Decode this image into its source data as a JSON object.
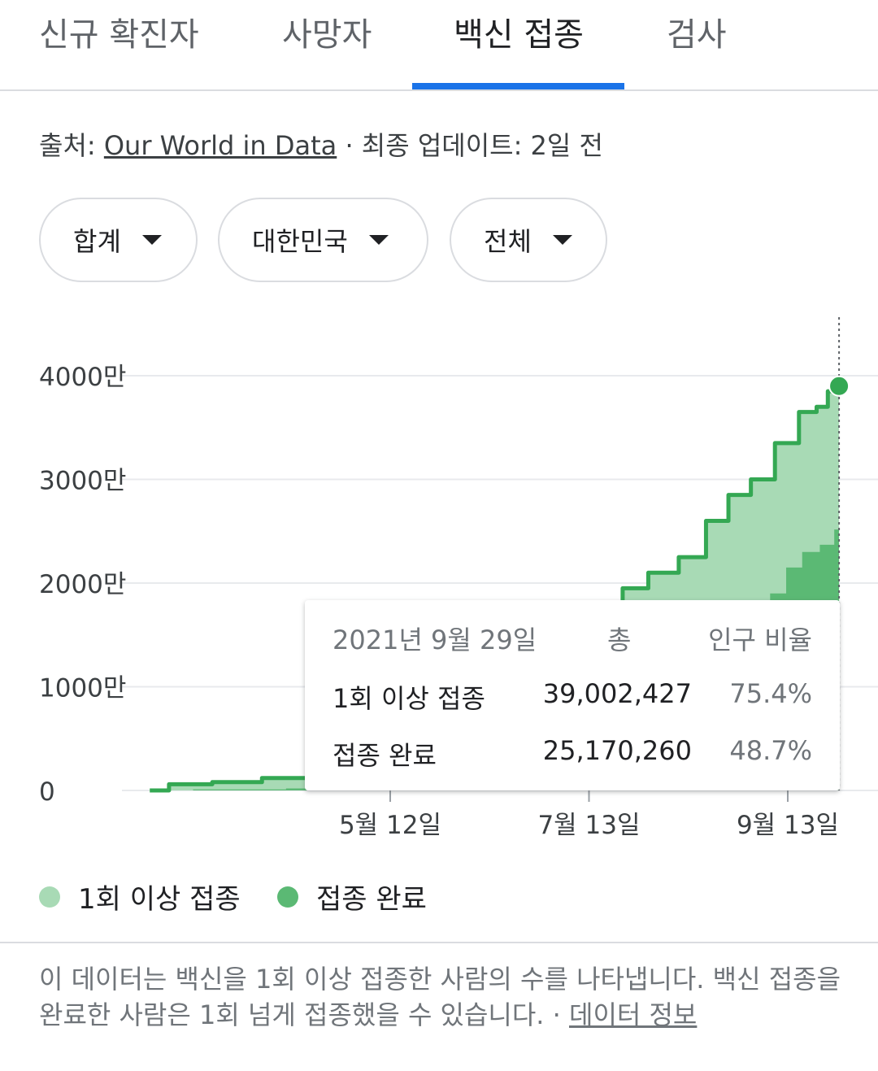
{
  "tabs": [
    {
      "label": "신규 확진자"
    },
    {
      "label": "사망자"
    },
    {
      "label": "백신 접종"
    },
    {
      "label": "검사"
    }
  ],
  "source": {
    "prefix": "출처: ",
    "link": "Our World in Data",
    "suffix": " · 최종 업데이트: 2일 전"
  },
  "filters": [
    {
      "label": "합계"
    },
    {
      "label": "대한민국"
    },
    {
      "label": "전체"
    }
  ],
  "colors": {
    "first_dose": "#a8dab5",
    "completed": "#5bb974",
    "line": "#34a853",
    "accent": "#1a73e8"
  },
  "chart_data": {
    "type": "area",
    "ylim": [
      0,
      40000000
    ],
    "y_ticks": [
      {
        "value": 0,
        "label": "0"
      },
      {
        "value": 10000000,
        "label": "1000만"
      },
      {
        "value": 20000000,
        "label": "2000만"
      },
      {
        "value": 30000000,
        "label": "3000만"
      },
      {
        "value": 40000000,
        "label": "4000만"
      }
    ],
    "x_ticks": [
      {
        "date": "2021-05-12",
        "label": "5월 12일"
      },
      {
        "date": "2021-07-13",
        "label": "7월 13일"
      },
      {
        "date": "2021-09-13",
        "label": "9월 13일"
      }
    ],
    "x_start": "2021-02-26",
    "x_end": "2021-09-29",
    "series": [
      {
        "name": "1회 이상 접종",
        "points": [
          [
            "2021-02-26",
            0
          ],
          [
            "2021-03-10",
            600000
          ],
          [
            "2021-03-25",
            800000
          ],
          [
            "2021-04-10",
            1200000
          ],
          [
            "2021-04-25",
            1900000
          ],
          [
            "2021-05-12",
            3700000
          ],
          [
            "2021-05-25",
            4500000
          ],
          [
            "2021-06-05",
            8000000
          ],
          [
            "2021-06-15",
            12000000
          ],
          [
            "2021-06-25",
            15000000
          ],
          [
            "2021-07-05",
            15500000
          ],
          [
            "2021-07-13",
            16000000
          ],
          [
            "2021-07-20",
            17000000
          ],
          [
            "2021-07-27",
            19500000
          ],
          [
            "2021-08-05",
            21000000
          ],
          [
            "2021-08-15",
            22500000
          ],
          [
            "2021-08-22",
            26000000
          ],
          [
            "2021-08-29",
            28500000
          ],
          [
            "2021-09-05",
            30000000
          ],
          [
            "2021-09-13",
            33500000
          ],
          [
            "2021-09-20",
            36500000
          ],
          [
            "2021-09-24",
            37000000
          ],
          [
            "2021-09-27",
            38500000
          ],
          [
            "2021-09-29",
            39002427
          ]
        ]
      },
      {
        "name": "접종 완료",
        "points": [
          [
            "2021-02-26",
            0
          ],
          [
            "2021-03-25",
            100000
          ],
          [
            "2021-04-25",
            200000
          ],
          [
            "2021-05-12",
            500000
          ],
          [
            "2021-06-05",
            1500000
          ],
          [
            "2021-06-25",
            3500000
          ],
          [
            "2021-07-13",
            6000000
          ],
          [
            "2021-07-27",
            6500000
          ],
          [
            "2021-08-05",
            8000000
          ],
          [
            "2021-08-15",
            9500000
          ],
          [
            "2021-08-29",
            13000000
          ],
          [
            "2021-09-05",
            17000000
          ],
          [
            "2021-09-10",
            19000000
          ],
          [
            "2021-09-15",
            21500000
          ],
          [
            "2021-09-20",
            23000000
          ],
          [
            "2021-09-26",
            23700000
          ],
          [
            "2021-09-29",
            25170260
          ]
        ]
      }
    ]
  },
  "tooltip": {
    "date": "2021년 9월 29일",
    "col_total": "총",
    "col_ratio": "인구 비율",
    "rows": [
      {
        "label": "1회 이상 접종",
        "total": "39,002,427",
        "ratio": "75.4%"
      },
      {
        "label": "접종 완료",
        "total": "25,170,260",
        "ratio": "48.7%"
      }
    ]
  },
  "legend": [
    {
      "label": "1회 이상 접종"
    },
    {
      "label": "접종 완료"
    }
  ],
  "note": {
    "text": "이 데이터는 백신을 1회 이상 접종한 사람의 수를 나타냅니다. 백신 접종을 완료한 사람은 1회 넘게 접종했을 수 있습니다.  · ",
    "link": "데이터 정보"
  }
}
